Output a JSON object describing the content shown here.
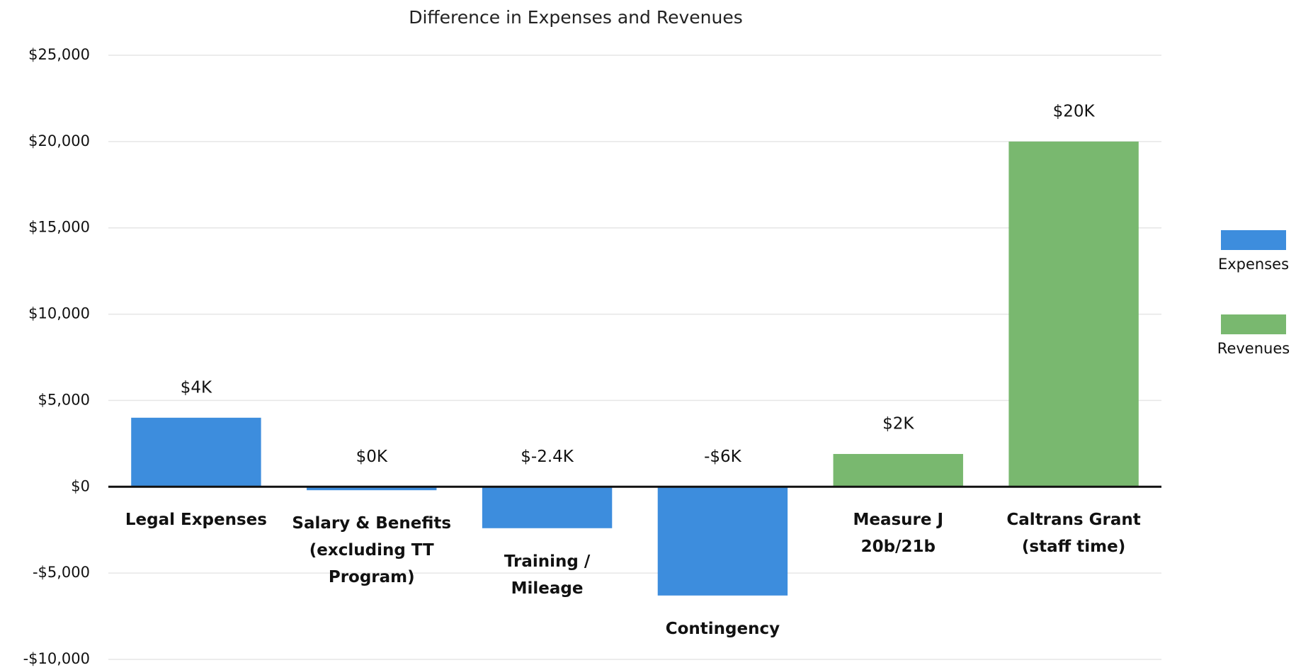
{
  "chart_data": {
    "type": "bar",
    "title": "Difference in Expenses and Revenues",
    "categories": [
      "Legal Expenses",
      "Salary & Benefits (excluding TT Program)",
      "Training / Mileage",
      "Contingency",
      "Measure J 20b/21b",
      "Caltrans Grant (staff time)"
    ],
    "series": [
      {
        "name": "Expenses",
        "color": "#3d8ddd",
        "values": [
          4000,
          -200,
          -2400,
          -6300,
          null,
          null
        ],
        "value_labels": [
          "$4K",
          "$0K",
          "$-2.4K",
          "-$6K",
          null,
          null
        ]
      },
      {
        "name": "Revenues",
        "color": "#79b86f",
        "values": [
          null,
          null,
          null,
          null,
          1900,
          20000
        ],
        "value_labels": [
          null,
          null,
          null,
          null,
          "$2K",
          "$20K"
        ]
      }
    ],
    "ylim": [
      -10000,
      25000
    ],
    "yticks": [
      {
        "value": -10000,
        "label": "-$10,000"
      },
      {
        "value": -5000,
        "label": "-$5,000"
      },
      {
        "value": 0,
        "label": "$0"
      },
      {
        "value": 5000,
        "label": "$5,000"
      },
      {
        "value": 10000,
        "label": "$10,000"
      },
      {
        "value": 15000,
        "label": "$15,000"
      },
      {
        "value": 20000,
        "label": "$20,000"
      },
      {
        "value": 25000,
        "label": "$25,000"
      }
    ],
    "grid": true,
    "legend": "right"
  }
}
